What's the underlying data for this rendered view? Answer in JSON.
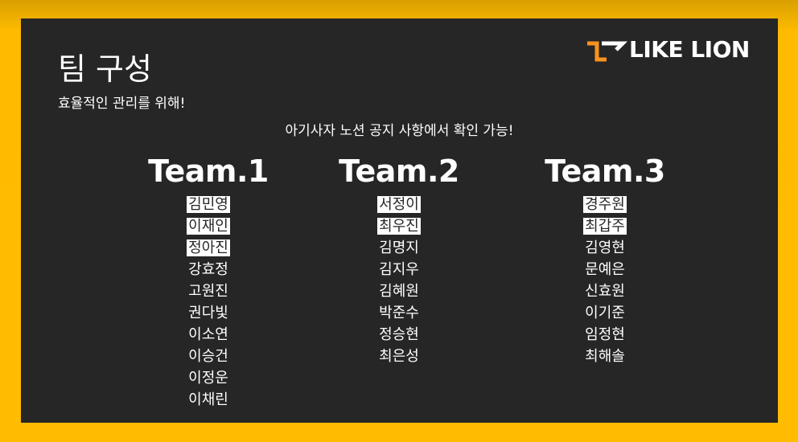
{
  "slide": {
    "title": "팀 구성",
    "subtitle": "효율적인 관리를 위해!",
    "notice": "아기사자 노션 공지 사항에서 확인 가능!"
  },
  "logo": {
    "text": "LIKE LION",
    "icon": "likelion-logo-mark",
    "accent_color": "#f7931e"
  },
  "colors": {
    "frame": "#ffbc00",
    "slide_background": "#262626",
    "text": "#ffffff",
    "highlight": "#ffffff"
  },
  "teams": [
    {
      "title": "Team.1",
      "members": [
        {
          "name": "김민영",
          "highlighted": true
        },
        {
          "name": "이재인",
          "highlighted": true
        },
        {
          "name": "정아진",
          "highlighted": true
        },
        {
          "name": "강효정",
          "highlighted": false
        },
        {
          "name": "고원진",
          "highlighted": false
        },
        {
          "name": "권다빛",
          "highlighted": false
        },
        {
          "name": "이소연",
          "highlighted": false
        },
        {
          "name": "이승건",
          "highlighted": false
        },
        {
          "name": "이정운",
          "highlighted": false
        },
        {
          "name": "이채린",
          "highlighted": false
        }
      ]
    },
    {
      "title": "Team.2",
      "members": [
        {
          "name": "서정이",
          "highlighted": true
        },
        {
          "name": "최우진",
          "highlighted": true
        },
        {
          "name": "김명지",
          "highlighted": false
        },
        {
          "name": "김지우",
          "highlighted": false
        },
        {
          "name": "김혜원",
          "highlighted": false
        },
        {
          "name": "박준수",
          "highlighted": false
        },
        {
          "name": "정승현",
          "highlighted": false
        },
        {
          "name": "최은성",
          "highlighted": false
        }
      ]
    },
    {
      "title": "Team.3",
      "members": [
        {
          "name": "경주원",
          "highlighted": true
        },
        {
          "name": "최갑주",
          "highlighted": true
        },
        {
          "name": "김영현",
          "highlighted": false
        },
        {
          "name": "문예은",
          "highlighted": false
        },
        {
          "name": "신효원",
          "highlighted": false
        },
        {
          "name": "이기준",
          "highlighted": false
        },
        {
          "name": "임정현",
          "highlighted": false
        },
        {
          "name": "최해솔",
          "highlighted": false
        }
      ]
    }
  ]
}
